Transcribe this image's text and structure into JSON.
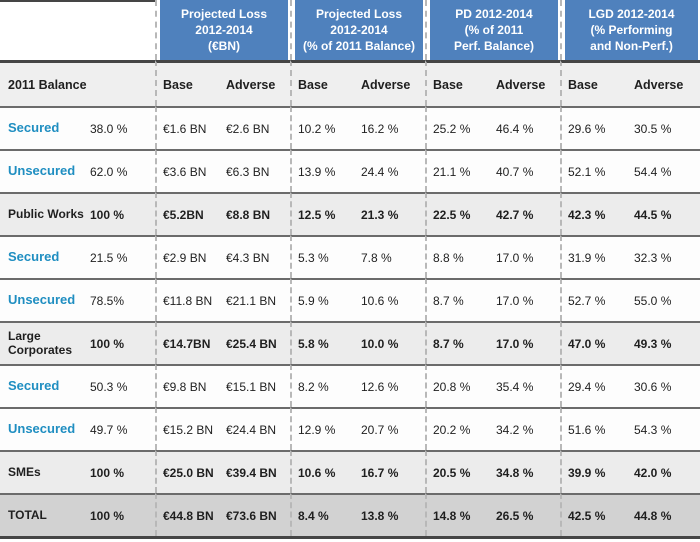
{
  "colors": {
    "header-blue": "#4f81bd",
    "label-teal": "#1f8ec1",
    "subheader-bg": "#efefef",
    "group-row-bg": "#ececec",
    "total-row-bg": "#d2d2d2",
    "line-dark": "#454545",
    "line-mid": "#6b6b6b",
    "line-dash": "#b8b8b8"
  },
  "table": {
    "column_groups": [
      {
        "title": "Projected Loss\n2012-2014\n(€BN)"
      },
      {
        "title": "Projected Loss\n2012-2014\n(% of 2011 Balance)"
      },
      {
        "title": "PD 2012-2014\n(% of 2011\nPerf. Balance)"
      },
      {
        "title": "LGD 2012-2014\n(% Performing\nand Non-Perf.)"
      }
    ],
    "subheader": {
      "balance_label": "2011 Balance",
      "base": "Base",
      "adverse": "Adverse"
    },
    "rows": [
      {
        "type": "sub",
        "label": "Secured",
        "balance": "38.0 %",
        "values": [
          "€1.6 BN",
          "€2.6 BN",
          "10.2 %",
          "16.2 %",
          "25.2 %",
          "46.4 %",
          "29.6 %",
          "30.5 %"
        ]
      },
      {
        "type": "sub",
        "label": "Unsecured",
        "balance": "62.0 %",
        "values": [
          "€3.6 BN",
          "€6.3 BN",
          "13.9 %",
          "24.4 %",
          "21.1 %",
          "40.7 %",
          "52.1 %",
          "54.4 %"
        ]
      },
      {
        "type": "group",
        "label": "Public Works",
        "balance": "100 %",
        "values": [
          "€5.2BN",
          "€8.8 BN",
          "12.5 %",
          "21.3 %",
          "22.5 %",
          "42.7 %",
          "42.3 %",
          "44.5 %"
        ]
      },
      {
        "type": "sub",
        "label": "Secured",
        "balance": "21.5 %",
        "values": [
          "€2.9 BN",
          "€4.3 BN",
          "5.3 %",
          "7.8 %",
          "8.8 %",
          "17.0 %",
          "31.9 %",
          "32.3 %"
        ]
      },
      {
        "type": "sub",
        "label": "Unsecured",
        "balance": "78.5%",
        "values": [
          "€11.8 BN",
          "€21.1 BN",
          "5.9 %",
          "10.6 %",
          "8.7 %",
          "17.0 %",
          "52.7 %",
          "55.0 %"
        ]
      },
      {
        "type": "group",
        "label": "Large Corporates",
        "balance": "100 %",
        "values": [
          "€14.7BN",
          "€25.4 BN",
          "5.8 %",
          "10.0 %",
          "8.7 %",
          "17.0 %",
          "47.0 %",
          "49.3 %"
        ]
      },
      {
        "type": "sub",
        "label": "Secured",
        "balance": "50.3 %",
        "values": [
          "€9.8 BN",
          "€15.1 BN",
          "8.2 %",
          "12.6 %",
          "20.8 %",
          "35.4 %",
          "29.4 %",
          "30.6 %"
        ]
      },
      {
        "type": "sub",
        "label": "Unsecured",
        "balance": "49.7 %",
        "values": [
          "€15.2 BN",
          "€24.4 BN",
          "12.9 %",
          "20.7 %",
          "20.2 %",
          "34.2 %",
          "51.6 %",
          "54.3 %"
        ]
      },
      {
        "type": "group",
        "label": "SMEs",
        "balance": "100 %",
        "values": [
          "€25.0 BN",
          "€39.4 BN",
          "10.6 %",
          "16.7 %",
          "20.5 %",
          "34.8 %",
          "39.9 %",
          "42.0 %"
        ]
      },
      {
        "type": "total",
        "label": "TOTAL",
        "balance": "100 %",
        "values": [
          "€44.8 BN",
          "€73.6 BN",
          "8.4 %",
          "13.8 %",
          "14.8 %",
          "26.5 %",
          "42.5 %",
          "44.8 %"
        ]
      }
    ]
  }
}
